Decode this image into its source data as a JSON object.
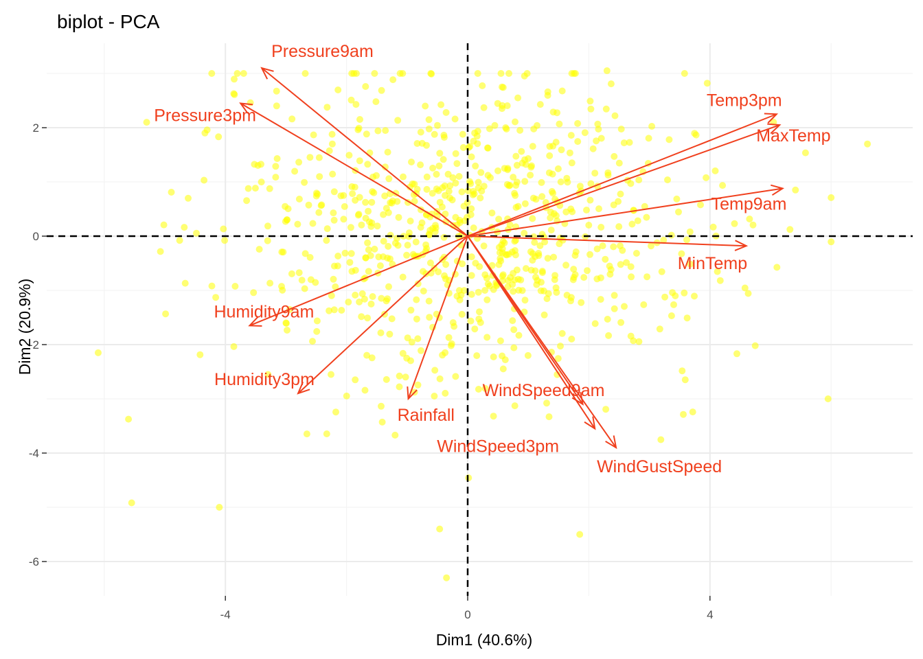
{
  "chart_data": {
    "type": "scatter",
    "subtype": "pca-biplot",
    "title": "biplot - PCA",
    "xlabel": "Dim1 (40.6%)",
    "ylabel": "Dim2 (20.9%)",
    "xlim": [
      -7.4,
      7.4
    ],
    "ylim": [
      -6.75,
      3.55
    ],
    "x_ticks": [
      -4,
      0,
      4
    ],
    "y_ticks": [
      2,
      0,
      -2,
      -4,
      -6
    ],
    "x_tick_labels": [
      "-4",
      "0",
      "4"
    ],
    "y_tick_labels": [
      "2",
      "0",
      "-2",
      "-4",
      "-6"
    ],
    "grid": true,
    "zero_reference_lines": "dashed",
    "colors": {
      "points": "#ffff00",
      "arrows": "#f0401e",
      "grid_major": "#ebebeb",
      "grid_minor": "#f4f4f4",
      "reference": "#000000"
    },
    "variables": [
      {
        "name": "Pressure9am",
        "x": -3.4,
        "y": 3.1
      },
      {
        "name": "Pressure3pm",
        "x": -3.75,
        "y": 2.45
      },
      {
        "name": "Temp3pm",
        "x": 5.1,
        "y": 2.25
      },
      {
        "name": "MaxTemp",
        "x": 5.15,
        "y": 2.05
      },
      {
        "name": "Temp9am",
        "x": 5.2,
        "y": 0.88
      },
      {
        "name": "MinTemp",
        "x": 4.6,
        "y": -0.18
      },
      {
        "name": "Humidity9am",
        "x": -3.6,
        "y": -1.65
      },
      {
        "name": "Humidity3pm",
        "x": -2.8,
        "y": -2.9
      },
      {
        "name": "Rainfall",
        "x": -0.98,
        "y": -3.0
      },
      {
        "name": "WindSpeed9am",
        "x": 1.9,
        "y": -3.1
      },
      {
        "name": "WindSpeed3pm",
        "x": 2.1,
        "y": -3.55
      },
      {
        "name": "WindGustSpeed",
        "x": 2.45,
        "y": -3.9
      }
    ],
    "observations": {
      "count": 800,
      "note": "individual observation points",
      "points_outlying": [
        {
          "x": -6.1,
          "y": -2.15
        },
        {
          "x": -4.1,
          "y": -5.0
        },
        {
          "x": -0.35,
          "y": -6.3
        },
        {
          "x": 1.85,
          "y": -5.5
        },
        {
          "x": 6.6,
          "y": 1.7
        },
        {
          "x": 5.95,
          "y": -3.0
        },
        {
          "x": 2.3,
          "y": 3.05
        },
        {
          "x": -5.3,
          "y": 2.1
        }
      ]
    }
  }
}
